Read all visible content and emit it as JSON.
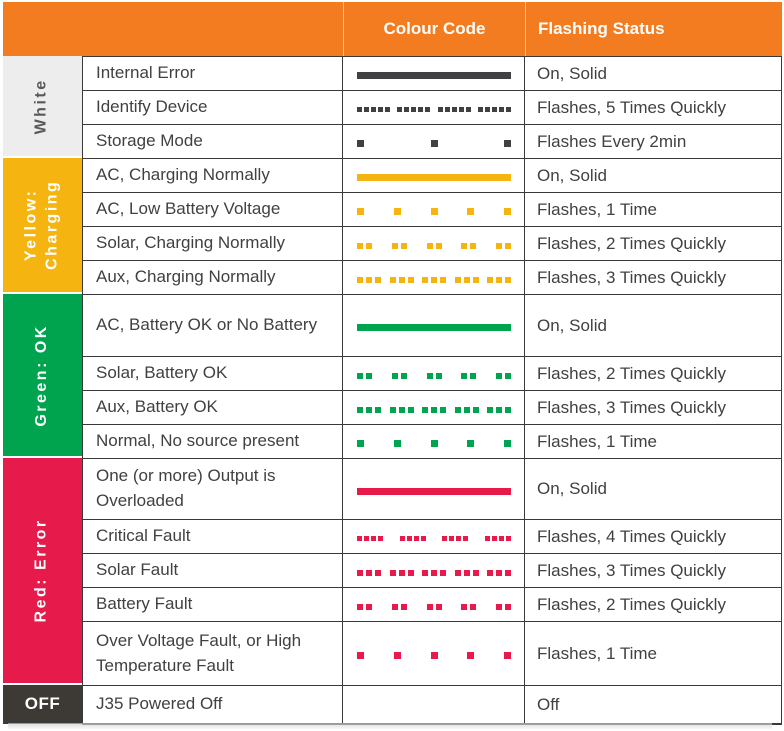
{
  "header": {
    "colour_code": "Colour Code",
    "flashing_status": "Flashing Status",
    "bg": "#F47C20",
    "text_color": "#FFFFFF"
  },
  "colors": {
    "orange_header": "#F47C20",
    "white_group_bg": "#EDEDEE",
    "white_group_text": "#58595B",
    "dark_dash": "#414042",
    "yellow": "#F5B40F",
    "green": "#00A44F",
    "red": "#E61A4B",
    "off_bg": "#3D3935",
    "grid_line": "#3A3A3A",
    "body_text": "#414042"
  },
  "groups": [
    {
      "label_lines": [
        "White"
      ],
      "color": "#414042",
      "rows": [
        {
          "label": "Internal Error",
          "status": "On, Solid",
          "pattern": {
            "style": "solid"
          }
        },
        {
          "label": "Identify Device",
          "status": "Flashes, 5 Times Quickly",
          "pattern": {
            "style": "flash",
            "groups": 4,
            "per_group": 5
          }
        },
        {
          "label": "Storage Mode",
          "status": "Flashes Every 2min",
          "pattern": {
            "style": "flash",
            "groups": 3,
            "per_group": 1
          }
        }
      ]
    },
    {
      "label_lines": [
        "Yellow:",
        "Charging"
      ],
      "color": "#F5B40F",
      "rows": [
        {
          "label": "AC, Charging Normally",
          "status": "On, Solid",
          "pattern": {
            "style": "solid"
          }
        },
        {
          "label": "AC, Low Battery Voltage",
          "status": "Flashes, 1 Time",
          "pattern": {
            "style": "flash",
            "groups": 5,
            "per_group": 1
          }
        },
        {
          "label": "Solar, Charging Normally",
          "status": "Flashes, 2 Times Quickly",
          "pattern": {
            "style": "flash",
            "groups": 5,
            "per_group": 2
          }
        },
        {
          "label": "Aux, Charging Normally",
          "status": "Flashes, 3 Times Quickly",
          "pattern": {
            "style": "flash",
            "groups": 5,
            "per_group": 3
          }
        }
      ]
    },
    {
      "label_lines": [
        "Green: OK"
      ],
      "color": "#00A44F",
      "rows": [
        {
          "label": "AC, Battery OK or No Battery",
          "status": "On, Solid",
          "pattern": {
            "style": "solid"
          }
        },
        {
          "label": "Solar, Battery OK",
          "status": "Flashes, 2 Times Quickly",
          "pattern": {
            "style": "flash",
            "groups": 5,
            "per_group": 2
          }
        },
        {
          "label": "Aux, Battery OK",
          "status": "Flashes, 3 Times Quickly",
          "pattern": {
            "style": "flash",
            "groups": 5,
            "per_group": 3
          }
        },
        {
          "label": "Normal, No source present",
          "status": "Flashes, 1 Time",
          "pattern": {
            "style": "flash",
            "groups": 5,
            "per_group": 1
          }
        }
      ]
    },
    {
      "label_lines": [
        "Red: Error"
      ],
      "color": "#E61A4B",
      "rows": [
        {
          "label": "One (or more) Output is Overloaded",
          "status": "On, Solid",
          "pattern": {
            "style": "solid"
          }
        },
        {
          "label": "Critical Fault",
          "status": "Flashes, 4 Times Quickly",
          "pattern": {
            "style": "flash",
            "groups": 4,
            "per_group": 4
          }
        },
        {
          "label": "Solar Fault",
          "status": "Flashes, 3 Times Quickly",
          "pattern": {
            "style": "flash",
            "groups": 5,
            "per_group": 3
          }
        },
        {
          "label": "Battery Fault",
          "status": "Flashes, 2 Times Quickly",
          "pattern": {
            "style": "flash",
            "groups": 5,
            "per_group": 2
          }
        },
        {
          "label": "Over Voltage Fault, or High Temperature Fault",
          "status": "Flashes, 1 Time",
          "pattern": {
            "style": "flash",
            "groups": 5,
            "per_group": 1
          }
        }
      ]
    },
    {
      "label_lines": [
        "OFF"
      ],
      "color": "#3D3935",
      "rows": [
        {
          "label": "J35 Powered Off",
          "status": "Off",
          "pattern": {
            "style": "none"
          }
        }
      ]
    }
  ]
}
